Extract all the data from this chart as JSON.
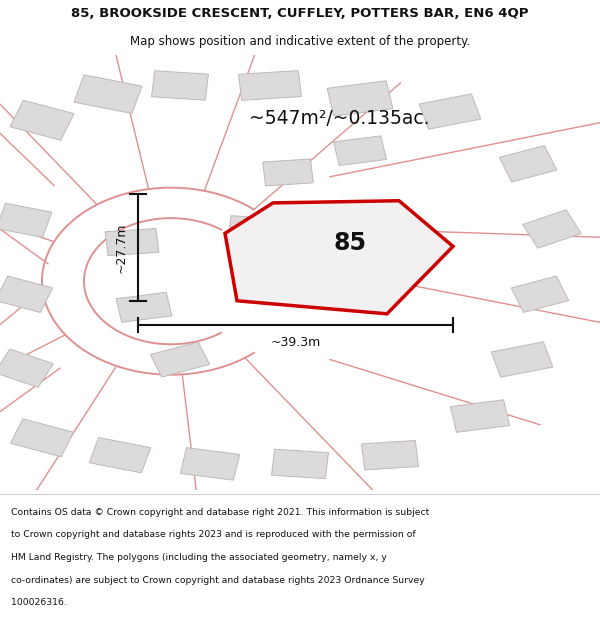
{
  "title_line1": "85, BROOKSIDE CRESCENT, CUFFLEY, POTTERS BAR, EN6 4QP",
  "title_line2": "Map shows position and indicative extent of the property.",
  "area_label": "~547m²/~0.135ac.",
  "number_label": "85",
  "dim_vertical": "~27.7m",
  "dim_horizontal": "~39.3m",
  "footer_lines": [
    "Contains OS data © Crown copyright and database right 2021. This information is subject",
    "to Crown copyright and database rights 2023 and is reproduced with the permission of",
    "HM Land Registry. The polygons (including the associated geometry, namely x, y",
    "co-ordinates) are subject to Crown copyright and database rights 2023 Ordnance Survey",
    "100026316."
  ],
  "map_bg_color": "#f2f0f0",
  "plot_fill_color": "#f2f0f0",
  "plot_edge_color": "#cc0000",
  "road_color": "#e09090",
  "building_fill": "#dcdada",
  "building_edge": "#c0b8b8",
  "dim_color": "#111111",
  "title_color": "#111111",
  "footer_color": "#111111",
  "figsize": [
    6.0,
    6.25
  ],
  "dpi": 100
}
